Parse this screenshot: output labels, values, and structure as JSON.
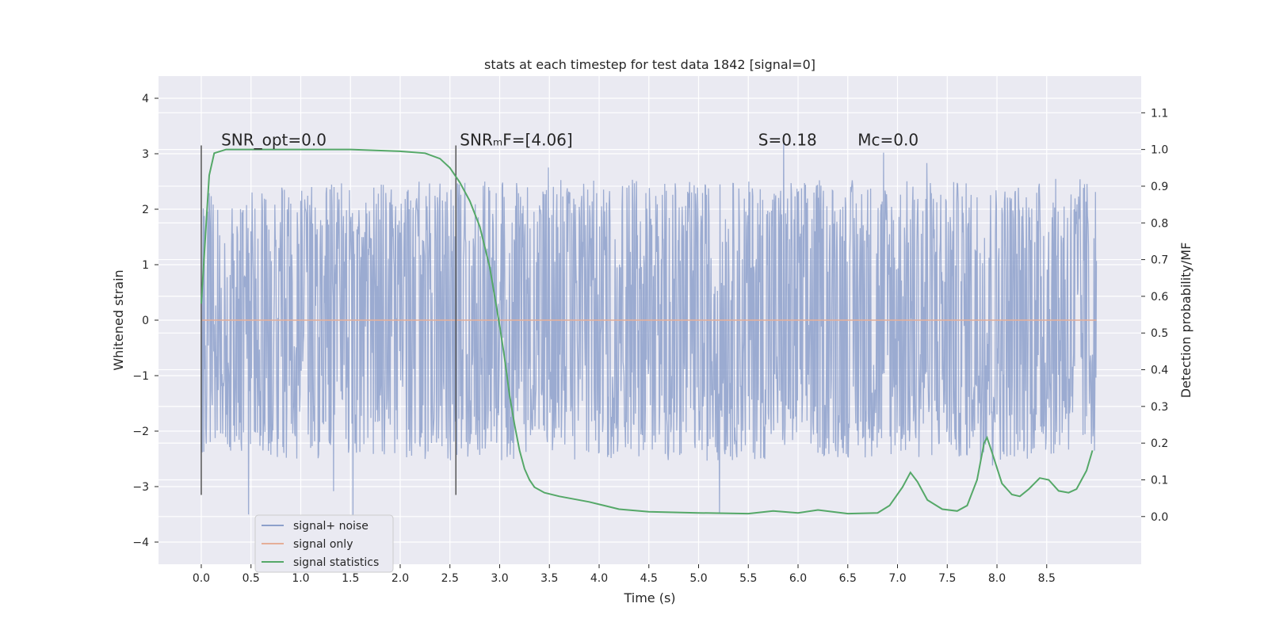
{
  "chart_data": {
    "type": "line",
    "title": "stats at each timestep for test data 1842 [signal=0]",
    "xlabel": "Time (s)",
    "ylabel": "Whitened strain",
    "y2label": "Detection probability/MF",
    "xlim": [
      -0.43,
      9.45
    ],
    "ylim": [
      -4.4,
      4.4
    ],
    "y2lim": [
      -0.13,
      1.2
    ],
    "xticks": [
      0.0,
      0.5,
      1.0,
      1.5,
      2.0,
      2.5,
      3.0,
      3.5,
      4.0,
      4.5,
      5.0,
      5.5,
      6.0,
      6.5,
      7.0,
      7.5,
      8.0,
      8.5
    ],
    "xtick_labels": [
      "0.0",
      "0.5",
      "1.0",
      "1.5",
      "2.0",
      "2.5",
      "3.0",
      "3.5",
      "4.0",
      "4.5",
      "5.0",
      "5.5",
      "6.0",
      "6.5",
      "7.0",
      "7.5",
      "8.0",
      "8.5"
    ],
    "yticks": [
      -4,
      -3,
      -2,
      -1,
      0,
      1,
      2,
      3,
      4
    ],
    "ytick_labels": [
      "−4",
      "−3",
      "−2",
      "−1",
      "0",
      "1",
      "2",
      "3",
      "4"
    ],
    "y2ticks": [
      0.0,
      0.1,
      0.2,
      0.3,
      0.4,
      0.5,
      0.6,
      0.7,
      0.8,
      0.9,
      1.0,
      1.1
    ],
    "y2tick_labels": [
      "0.0",
      "0.1",
      "0.2",
      "0.3",
      "0.4",
      "0.5",
      "0.6",
      "0.7",
      "0.8",
      "0.9",
      "1.0",
      "1.1"
    ],
    "grid": true,
    "legend_position": "lower-left",
    "annotations": [
      {
        "text": "SNR_opt=0.0",
        "x": 0.2,
        "y": 3.15
      },
      {
        "text": "SNRₘF=[4.06]",
        "x": 2.6,
        "y": 3.15
      },
      {
        "text": "S=0.18",
        "x": 5.6,
        "y": 3.15
      },
      {
        "text": "Mᴄ=0.0",
        "x": 6.6,
        "y": 3.15
      }
    ],
    "vlines": [
      {
        "x": 0.0,
        "ymin": -3.15,
        "ymax": 3.15
      },
      {
        "x": 2.56,
        "ymin": -3.15,
        "ymax": 3.15
      }
    ],
    "series": [
      {
        "name": "signal+ noise",
        "color": "#8da0cb",
        "axis": "left",
        "x_range": [
          0.0,
          9.0
        ],
        "envelope_upper": [
          [
            0.0,
            2.4
          ],
          [
            1.0,
            2.45
          ],
          [
            2.0,
            2.5
          ],
          [
            3.0,
            2.5
          ],
          [
            4.0,
            2.55
          ],
          [
            5.0,
            2.5
          ],
          [
            6.0,
            2.55
          ],
          [
            7.0,
            2.55
          ],
          [
            8.0,
            2.5
          ],
          [
            9.0,
            2.6
          ]
        ],
        "envelope_lower": [
          [
            0.0,
            -2.4
          ],
          [
            1.0,
            -2.5
          ],
          [
            2.0,
            -2.5
          ],
          [
            3.0,
            -2.55
          ],
          [
            4.0,
            -2.5
          ],
          [
            5.0,
            -2.55
          ],
          [
            6.0,
            -2.5
          ],
          [
            7.0,
            -2.5
          ],
          [
            8.0,
            -2.55
          ],
          [
            9.0,
            -2.4
          ]
        ]
      },
      {
        "name": "signal only",
        "color": "#e5ae98",
        "axis": "left",
        "points": [
          [
            0.0,
            0.0
          ],
          [
            9.0,
            0.0
          ]
        ]
      },
      {
        "name": "signal statistics",
        "color": "#55a868",
        "axis": "right",
        "points": [
          [
            0.0,
            0.58
          ],
          [
            0.05,
            0.8
          ],
          [
            0.08,
            0.93
          ],
          [
            0.13,
            0.99
          ],
          [
            0.25,
            1.0
          ],
          [
            0.5,
            1.0
          ],
          [
            1.0,
            1.0
          ],
          [
            1.5,
            1.0
          ],
          [
            2.0,
            0.995
          ],
          [
            2.25,
            0.99
          ],
          [
            2.4,
            0.975
          ],
          [
            2.5,
            0.95
          ],
          [
            2.6,
            0.91
          ],
          [
            2.7,
            0.86
          ],
          [
            2.8,
            0.79
          ],
          [
            2.9,
            0.68
          ],
          [
            2.95,
            0.6
          ],
          [
            3.0,
            0.52
          ],
          [
            3.05,
            0.43
          ],
          [
            3.1,
            0.33
          ],
          [
            3.15,
            0.25
          ],
          [
            3.2,
            0.18
          ],
          [
            3.25,
            0.13
          ],
          [
            3.3,
            0.1
          ],
          [
            3.35,
            0.08
          ],
          [
            3.45,
            0.065
          ],
          [
            3.6,
            0.055
          ],
          [
            3.9,
            0.04
          ],
          [
            4.2,
            0.02
          ],
          [
            4.5,
            0.013
          ],
          [
            5.0,
            0.01
          ],
          [
            5.5,
            0.008
          ],
          [
            5.75,
            0.015
          ],
          [
            6.0,
            0.01
          ],
          [
            6.2,
            0.018
          ],
          [
            6.5,
            0.008
          ],
          [
            6.8,
            0.01
          ],
          [
            6.92,
            0.03
          ],
          [
            7.05,
            0.08
          ],
          [
            7.13,
            0.12
          ],
          [
            7.2,
            0.095
          ],
          [
            7.3,
            0.045
          ],
          [
            7.45,
            0.02
          ],
          [
            7.6,
            0.015
          ],
          [
            7.7,
            0.03
          ],
          [
            7.8,
            0.1
          ],
          [
            7.87,
            0.2
          ],
          [
            7.9,
            0.215
          ],
          [
            7.95,
            0.175
          ],
          [
            8.05,
            0.09
          ],
          [
            8.15,
            0.06
          ],
          [
            8.23,
            0.055
          ],
          [
            8.32,
            0.075
          ],
          [
            8.43,
            0.105
          ],
          [
            8.52,
            0.1
          ],
          [
            8.62,
            0.07
          ],
          [
            8.72,
            0.065
          ],
          [
            8.8,
            0.075
          ],
          [
            8.9,
            0.125
          ],
          [
            8.96,
            0.18
          ]
        ]
      }
    ]
  }
}
